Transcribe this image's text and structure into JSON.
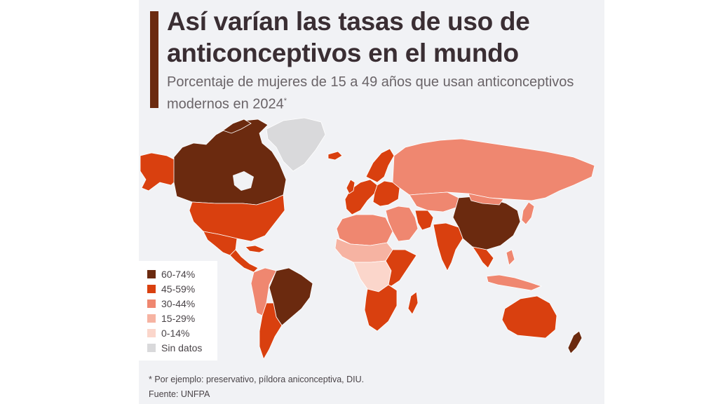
{
  "header": {
    "title": "Así varían las tasas de uso de anticonceptivos en el mundo",
    "subtitle": "Porcentaje de mujeres de 15 a 49 años que usan anticonceptivos modernos en 2024",
    "subtitle_mark": "*"
  },
  "legend": {
    "items": [
      {
        "label": "60-74%",
        "color": "#6b2a0f"
      },
      {
        "label": "45-59%",
        "color": "#d9400f"
      },
      {
        "label": "30-44%",
        "color": "#ef8770"
      },
      {
        "label": "15-29%",
        "color": "#f6b3a2"
      },
      {
        "label": "0-14%",
        "color": "#fbd6cb"
      },
      {
        "label": "Sin datos",
        "color": "#d9d9db"
      }
    ]
  },
  "map_regions": [
    {
      "region": "North America",
      "class": "60-74%"
    },
    {
      "region": "Alaska",
      "class": "45-59%"
    },
    {
      "region": "United States",
      "class": "45-59%"
    },
    {
      "region": "Greenland",
      "class": "Sin datos"
    },
    {
      "region": "Mexico",
      "class": "45-59%"
    },
    {
      "region": "Central America",
      "class": "45-59%"
    },
    {
      "region": "Brazil",
      "class": "60-74%"
    },
    {
      "region": "Southern Cone",
      "class": "45-59%"
    },
    {
      "region": "Andean South America",
      "class": "30-44%"
    },
    {
      "region": "Western Europe",
      "class": "45-59%"
    },
    {
      "region": "Scandinavia",
      "class": "45-59%"
    },
    {
      "region": "Russia",
      "class": "30-44%"
    },
    {
      "region": "China",
      "class": "60-74%"
    },
    {
      "region": "India",
      "class": "45-59%"
    },
    {
      "region": "Southeast Asia",
      "class": "45-59%"
    },
    {
      "region": "Indonesia",
      "class": "30-44%"
    },
    {
      "region": "Australia",
      "class": "45-59%"
    },
    {
      "region": "New Zealand",
      "class": "60-74%"
    },
    {
      "region": "North Africa",
      "class": "30-44%"
    },
    {
      "region": "Sahel & West Africa",
      "class": "15-29%"
    },
    {
      "region": "Central Africa",
      "class": "0-14%"
    },
    {
      "region": "East Africa",
      "class": "45-59%"
    },
    {
      "region": "Southern Africa",
      "class": "45-59%"
    },
    {
      "region": "Middle East",
      "class": "30-44%"
    },
    {
      "region": "Iran",
      "class": "45-59%"
    },
    {
      "region": "Japan",
      "class": "30-44%"
    },
    {
      "region": "Madagascar",
      "class": "45-59%"
    }
  ],
  "footer": {
    "footnote": "* Por ejemplo: preservativo, píldora aniconceptiva, DIU.",
    "source": "Fuente: UNFPA"
  }
}
